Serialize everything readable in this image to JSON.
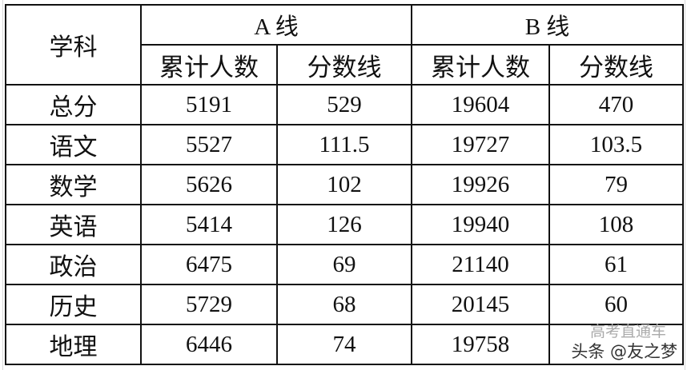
{
  "header": {
    "subject": "学科",
    "group_a": "A 线",
    "group_b": "B 线",
    "cumulative": "累计人数",
    "score_line": "分数线"
  },
  "rows": [
    {
      "subject": "总分",
      "a_count": "5191",
      "a_line": "529",
      "b_count": "19604",
      "b_line": "470"
    },
    {
      "subject": "语文",
      "a_count": "5527",
      "a_line": "111.5",
      "b_count": "19727",
      "b_line": "103.5"
    },
    {
      "subject": "数学",
      "a_count": "5626",
      "a_line": "102",
      "b_count": "19926",
      "b_line": "79"
    },
    {
      "subject": "英语",
      "a_count": "5414",
      "a_line": "126",
      "b_count": "19940",
      "b_line": "108"
    },
    {
      "subject": "政治",
      "a_count": "6475",
      "a_line": "69",
      "b_count": "21140",
      "b_line": "61"
    },
    {
      "subject": "历史",
      "a_count": "5729",
      "a_line": "68",
      "b_count": "20145",
      "b_line": "60"
    },
    {
      "subject": "地理",
      "a_count": "6446",
      "a_line": "74",
      "b_count": "19758",
      "b_line": ""
    }
  ],
  "watermark": {
    "line1": "高考直通车",
    "line2": "头条 @友之梦"
  }
}
